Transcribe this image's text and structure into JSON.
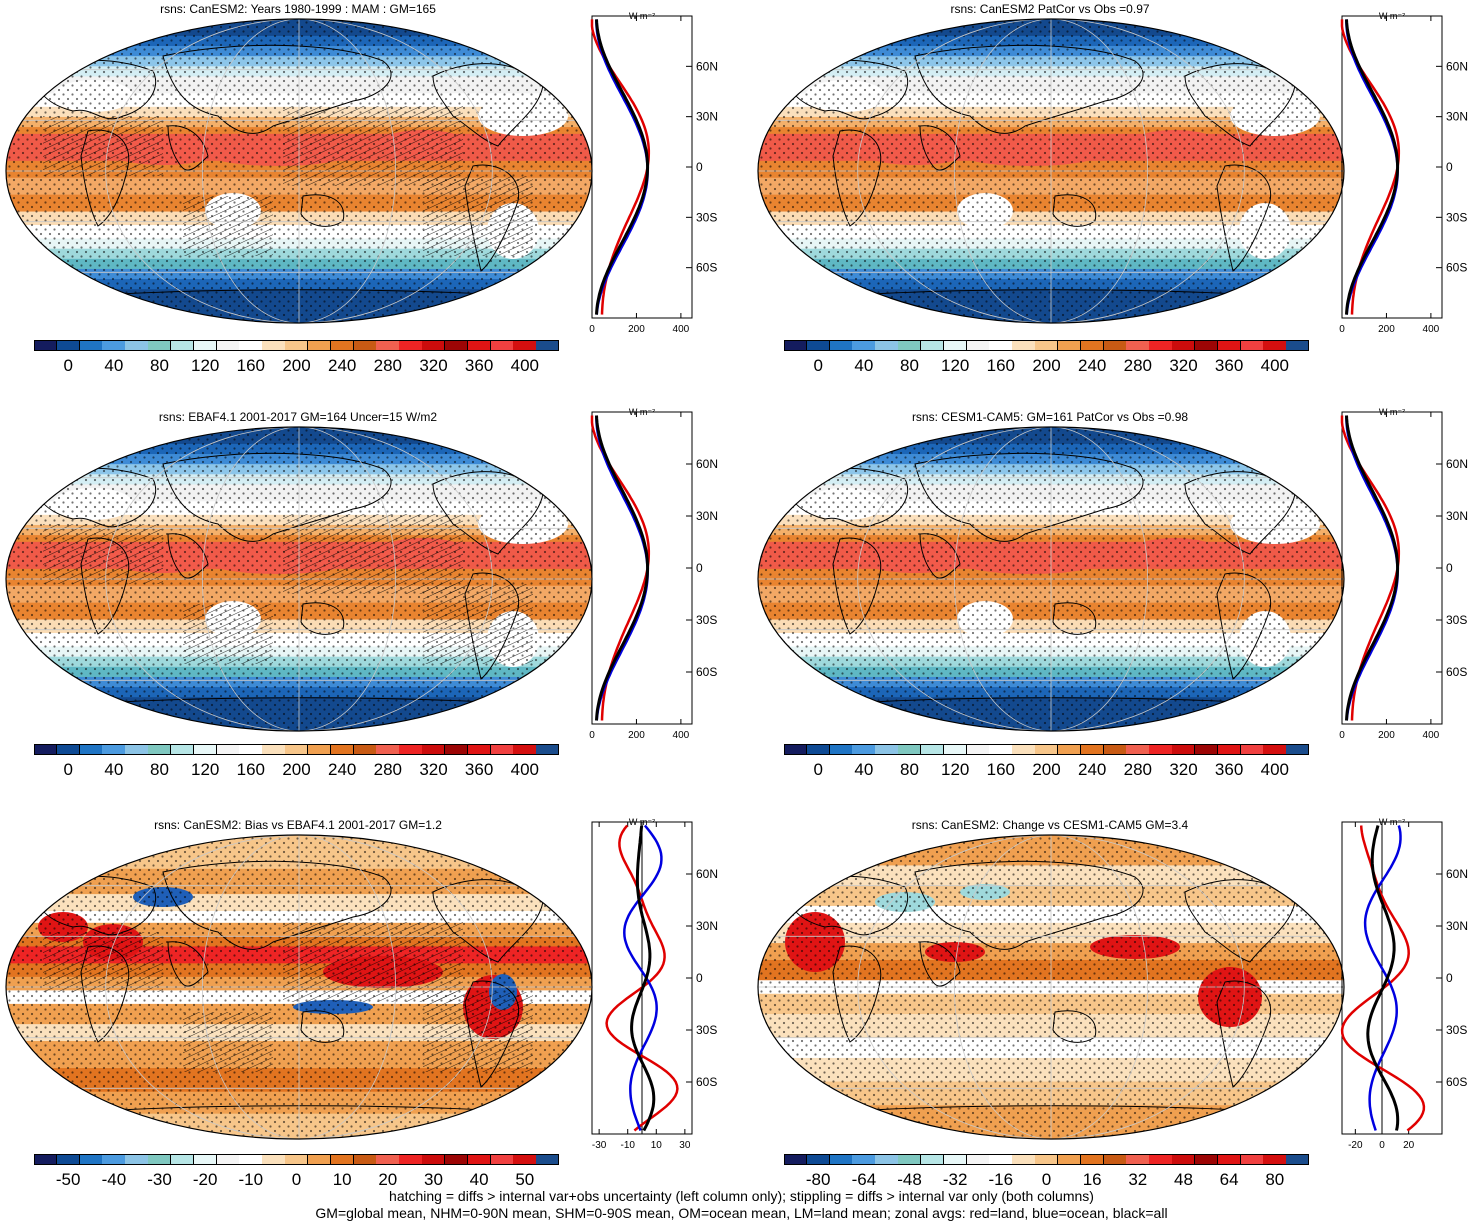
{
  "panels": [
    {
      "title": "rsns: CanESM2: Years 1980-1999 : MAM : GM=165",
      "type": "abs",
      "hatch": true,
      "stipple": true
    },
    {
      "title": "rsns: CanESM2 PatCor vs Obs =0.97",
      "type": "abs",
      "hatch": false,
      "stipple": true
    },
    {
      "title": "rsns: EBAF4.1 2001-2017 GM=164 Uncer=15 W/m2",
      "type": "abs",
      "hatch": true,
      "stipple": true
    },
    {
      "title": "rsns: CESM1-CAM5: GM=161 PatCor vs Obs =0.98",
      "type": "abs",
      "hatch": false,
      "stipple": true
    },
    {
      "title": "rsns: CanESM2: Bias vs EBAF4.1 2001-2017 GM=1.2",
      "type": "diff",
      "hatch": true,
      "stipple": true
    },
    {
      "title": "rsns: CanESM2: Change vs CESM1-CAM5 GM=3.4",
      "type": "diff",
      "hatch": false,
      "stipple": true
    }
  ],
  "colorbars": {
    "abs": {
      "labels": [
        "0",
        "40",
        "80",
        "120",
        "160",
        "200",
        "240",
        "280",
        "320",
        "360",
        "400"
      ],
      "colors": [
        "#141c5e",
        "#0e4a94",
        "#1f74c4",
        "#4c9be0",
        "#8cc4e6",
        "#7fc8c0",
        "#b7e6e6",
        "#e8f8f8",
        "#f5f5f5",
        "#ffffff",
        "#fbe1bd",
        "#f7c68a",
        "#f0a050",
        "#e27420",
        "#c85a14",
        "#f06050",
        "#ee2424",
        "#cc0c0c",
        "#9c0505",
        "#e01414",
        "#f04040",
        "#d40f0f",
        "#1a4c8c"
      ]
    },
    "bias": {
      "labels": [
        "-50",
        "-40",
        "-30",
        "-20",
        "-10",
        "0",
        "10",
        "20",
        "30",
        "40",
        "50"
      ],
      "colors": [
        "#141c5e",
        "#0e4a94",
        "#1f74c4",
        "#4c9be0",
        "#8cc4e6",
        "#7fc8c0",
        "#b7e6e6",
        "#e8f8f8",
        "#f5f5f5",
        "#ffffff",
        "#fbe1bd",
        "#f7c68a",
        "#f0a050",
        "#e27420",
        "#c85a14",
        "#f06050",
        "#ee2424",
        "#cc0c0c",
        "#9c0505",
        "#e01414",
        "#f04040",
        "#d40f0f",
        "#1a4c8c"
      ]
    },
    "change": {
      "labels": [
        "-80",
        "-64",
        "-48",
        "-32",
        "-16",
        "0",
        "16",
        "32",
        "48",
        "64",
        "80"
      ],
      "colors": [
        "#141c5e",
        "#0e4a94",
        "#1f74c4",
        "#4c9be0",
        "#8cc4e6",
        "#7fc8c0",
        "#b7e6e6",
        "#e8f8f8",
        "#f5f5f5",
        "#ffffff",
        "#fbe1bd",
        "#f7c68a",
        "#f0a050",
        "#e27420",
        "#c85a14",
        "#f06050",
        "#ee2424",
        "#cc0c0c",
        "#9c0505",
        "#e01414",
        "#f04040",
        "#d40f0f",
        "#1a4c8c"
      ]
    }
  },
  "zonal": {
    "units": "W m⁻²",
    "lat_labels": [
      "60N",
      "30N",
      "0",
      "30S",
      "60S"
    ],
    "abs_x_labels": [
      "0",
      "200",
      "400"
    ],
    "bias_x_labels": [
      "-30",
      "-10",
      "10",
      "30"
    ],
    "change_x_labels": [
      "-20",
      "0",
      "20"
    ],
    "line_colors": {
      "land": "#e00000",
      "ocean": "#0000e0",
      "all": "#000000"
    }
  },
  "footer": {
    "line1": "hatching = diffs > internal var+obs uncertainty (left column only); stippling = diffs > internal var only (both columns)",
    "line2": "GM=global mean, NHM=0-90N mean, SHM=0-90S mean, OM=ocean mean, LM=land mean; zonal avgs: red=land, blue=ocean, black=all"
  }
}
